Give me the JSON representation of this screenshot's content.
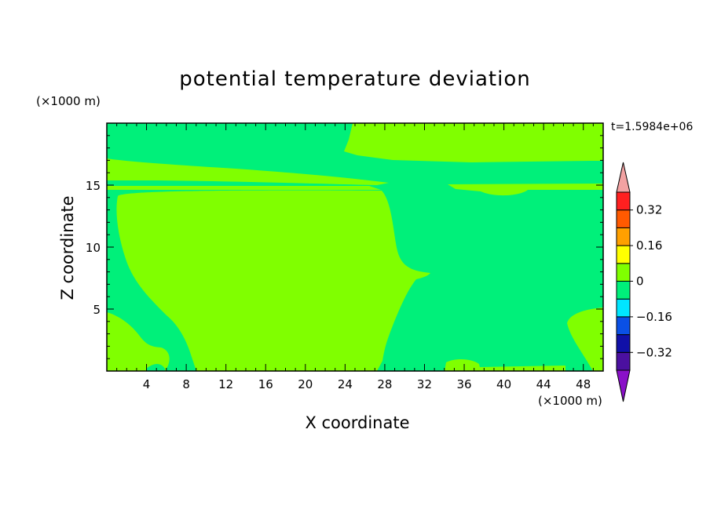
{
  "chart_data": {
    "type": "heatmap",
    "title": "potential temperature deviation",
    "xlabel": "X coordinate",
    "ylabel": "Z coordinate",
    "x_unit": "(×1000 m)",
    "z_unit": "(×1000 m)",
    "time_label": "t=1.5984e+06",
    "xlim": [
      0,
      50
    ],
    "ylim": [
      0,
      20
    ],
    "x_ticks": [
      "4",
      "8",
      "12",
      "16",
      "20",
      "24",
      "28",
      "32",
      "36",
      "40",
      "44",
      "48"
    ],
    "y_ticks": [
      "5",
      "10",
      "15"
    ],
    "colorbar": {
      "levels": [
        -0.4,
        -0.32,
        -0.24,
        -0.16,
        -0.08,
        0,
        0.08,
        0.16,
        0.24,
        0.32,
        0.4
      ],
      "tick_labels": [
        "0.32",
        "0.16",
        "0",
        "−0.16",
        "−0.32"
      ],
      "colors": [
        "#4b10a0",
        "#1010a8",
        "#0a50e6",
        "#00e6ff",
        "#00f07a",
        "#80ff00",
        "#ffff00",
        "#ffa000",
        "#ff5a00",
        "#ff2020"
      ],
      "over_color": "#f2a2a2",
      "under_color": "#8a10c8"
    },
    "regions": [
      {
        "class": "0 to 0.08",
        "color": "#80ff00",
        "description": "large central warm anomaly, x ~1 to 28, z ~0.5 to 14.5"
      },
      {
        "class": "0 to 0.08",
        "color": "#80ff00",
        "description": "layer near z ~15 to 17"
      },
      {
        "class": "0 to 0.08",
        "color": "#80ff00",
        "description": "upper region x ~24 to 48, z ~17 to 20"
      },
      {
        "class": "-0.08 to 0",
        "color": "#00f07a",
        "description": "background"
      }
    ]
  }
}
